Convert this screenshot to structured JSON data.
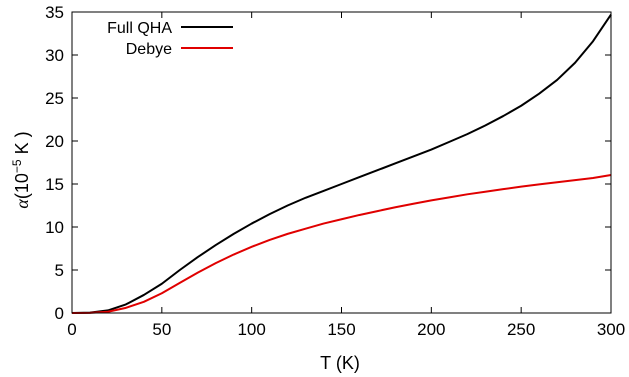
{
  "chart_data": {
    "type": "line",
    "title": "",
    "xlabel": "T (K)",
    "ylabel_symbol": "α",
    "ylabel_open": "(10",
    "ylabel_exp": "−5",
    "ylabel_close": " K )",
    "xlim": [
      0,
      300
    ],
    "ylim": [
      0,
      35
    ],
    "xticks": [
      0,
      50,
      100,
      150,
      200,
      250,
      300
    ],
    "yticks": [
      0,
      5,
      10,
      15,
      20,
      25,
      30,
      35
    ],
    "grid": false,
    "legend": "top-left",
    "series": [
      {
        "name": "Full QHA",
        "color": "#000000",
        "x": [
          0,
          10,
          20,
          30,
          40,
          50,
          60,
          70,
          80,
          90,
          100,
          110,
          120,
          130,
          140,
          150,
          160,
          170,
          180,
          190,
          200,
          210,
          220,
          230,
          240,
          250,
          260,
          270,
          280,
          290,
          300
        ],
        "y": [
          0,
          0.05,
          0.3,
          1.0,
          2.1,
          3.4,
          5.0,
          6.5,
          7.9,
          9.2,
          10.4,
          11.5,
          12.5,
          13.4,
          14.2,
          15.0,
          15.8,
          16.6,
          17.4,
          18.2,
          19.0,
          19.9,
          20.8,
          21.8,
          22.9,
          24.1,
          25.5,
          27.1,
          29.1,
          31.6,
          34.7
        ]
      },
      {
        "name": "Debye",
        "color": "#e00000",
        "x": [
          0,
          10,
          20,
          30,
          40,
          50,
          60,
          70,
          80,
          90,
          100,
          110,
          120,
          130,
          140,
          150,
          160,
          170,
          180,
          190,
          200,
          210,
          220,
          230,
          240,
          250,
          260,
          270,
          280,
          290,
          300
        ],
        "y": [
          0,
          0.02,
          0.15,
          0.6,
          1.3,
          2.3,
          3.5,
          4.7,
          5.8,
          6.8,
          7.7,
          8.5,
          9.2,
          9.8,
          10.4,
          10.9,
          11.4,
          11.85,
          12.3,
          12.7,
          13.1,
          13.45,
          13.8,
          14.1,
          14.4,
          14.7,
          14.95,
          15.2,
          15.45,
          15.7,
          16.05
        ]
      }
    ]
  }
}
